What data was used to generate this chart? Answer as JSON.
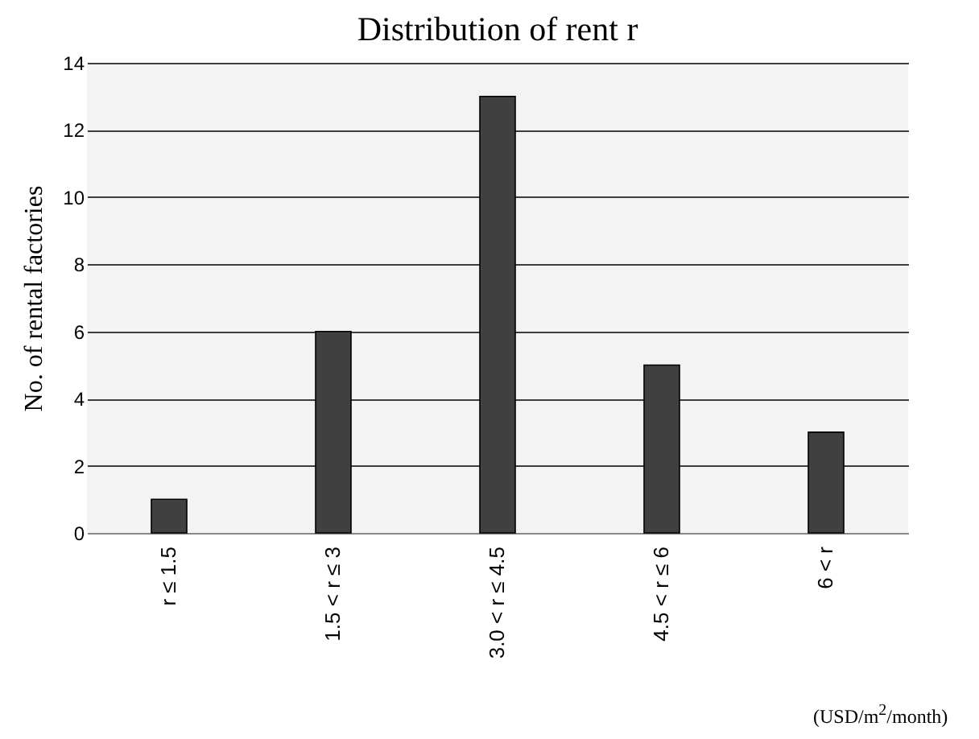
{
  "chart_data": {
    "type": "bar",
    "title": "Distribution of rent r",
    "ylabel": "No. of rental factories",
    "categories": [
      "r ≤ 1.5",
      "1.5 < r ≤ 3",
      "3.0 < r ≤ 4.5",
      "4.5 < r ≤ 6",
      "6 < r"
    ],
    "values": [
      1,
      6,
      13,
      5,
      3
    ],
    "color": "#404040",
    "ylim": [
      0,
      14
    ],
    "yticks": [
      0,
      2,
      4,
      6,
      8,
      10,
      12,
      14
    ],
    "grid": "y",
    "annotations": [
      "(USD/m$^{2}$/month)"
    ]
  }
}
